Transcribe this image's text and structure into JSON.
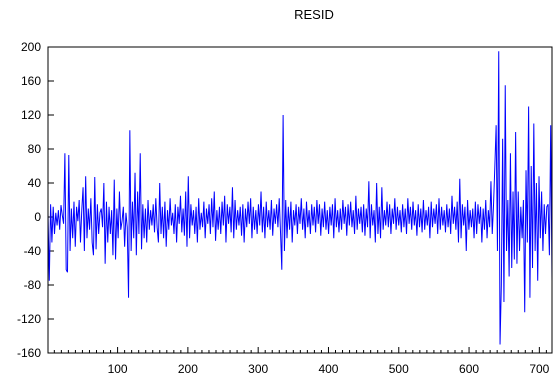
{
  "chart_data": {
    "type": "line",
    "title": "RESID",
    "xlabel": "",
    "ylabel": "",
    "xlim": [
      1,
      718
    ],
    "ylim": [
      -160,
      200
    ],
    "y_ticks": [
      200,
      160,
      120,
      80,
      40,
      0,
      -40,
      -80,
      -120,
      -160
    ],
    "x_ticks": [
      100,
      200,
      300,
      400,
      500,
      600,
      700
    ],
    "grid": false,
    "legend": "none",
    "line_color": "#0000ff",
    "series": [
      {
        "values": [
          4,
          -75,
          15,
          -30,
          12,
          -20,
          5,
          -10,
          8,
          -15,
          14,
          2,
          -8,
          75,
          -62,
          -65,
          73,
          -40,
          10,
          -25,
          18,
          -35,
          12,
          -5,
          20,
          -30,
          8,
          35,
          -40,
          48,
          -25,
          10,
          -15,
          22,
          -30,
          -45,
          47,
          -38,
          15,
          -20,
          5,
          10,
          -12,
          40,
          -55,
          18,
          -30,
          12,
          -20,
          8,
          -45,
          44,
          -50,
          10,
          -25,
          30,
          -15,
          -5,
          12,
          -35,
          5,
          -12,
          -95,
          102,
          -40,
          18,
          -25,
          52,
          -45,
          30,
          -20,
          75,
          -38,
          15,
          -25,
          10,
          -30,
          20,
          -15,
          8,
          -10,
          15,
          -18,
          22,
          -12,
          -30,
          40,
          -20,
          12,
          -25,
          18,
          -35,
          8,
          -15,
          22,
          -10,
          5,
          -20,
          15,
          -30,
          12,
          -8,
          25,
          -18,
          10,
          -22,
          30,
          -35,
          48,
          -25,
          15,
          -10,
          8,
          -20,
          12,
          -30,
          22,
          -15,
          5,
          -12,
          18,
          -25,
          10,
          -8,
          15,
          -20,
          22,
          -12,
          30,
          -28,
          8,
          -15,
          12,
          -20,
          18,
          -10,
          25,
          -30,
          15,
          -8,
          12,
          -18,
          35,
          -25,
          20,
          -15,
          8,
          -10,
          12,
          -22,
          15,
          -30,
          10,
          -12,
          18,
          -8,
          22,
          -25,
          12,
          -15,
          8,
          -20,
          15,
          -10,
          30,
          -18,
          12,
          -25,
          18,
          -12,
          8,
          -15,
          20,
          -22,
          10,
          -8,
          15,
          -12,
          22,
          -18,
          -62,
          120,
          -40,
          20,
          -25,
          12,
          -15,
          18,
          -30,
          8,
          -10,
          15,
          -20,
          12,
          -8,
          22,
          -15,
          10,
          -25,
          18,
          -12,
          8,
          -20,
          15,
          -10,
          12,
          -18,
          20,
          -8,
          15,
          -22,
          10,
          -12,
          18,
          -15,
          8,
          -20,
          12,
          -10,
          15,
          -25,
          22,
          -12,
          8,
          -18,
          10,
          -15,
          20,
          -8,
          12,
          -22,
          15,
          -10,
          18,
          -12,
          8,
          -20,
          25,
          -15,
          10,
          -8,
          12,
          -18,
          15,
          -22,
          10,
          -12,
          42,
          -25,
          15,
          -10,
          8,
          -30,
          40,
          -20,
          12,
          -25,
          35,
          -15,
          8,
          -10,
          18,
          -12,
          15,
          -20,
          10,
          -8,
          22,
          -15,
          12,
          -10,
          8,
          -18,
          15,
          -12,
          10,
          -20,
          22,
          -8,
          12,
          -15,
          18,
          -10,
          8,
          -22,
          15,
          -12,
          10,
          -18,
          20,
          -15,
          8,
          -10,
          12,
          -25,
          18,
          -12,
          10,
          -8,
          15,
          -20,
          22,
          -15,
          12,
          -10,
          8,
          -18,
          15,
          -12,
          10,
          -20,
          25,
          -8,
          12,
          -15,
          18,
          -30,
          45,
          -25,
          15,
          -10,
          12,
          -40,
          20,
          -15,
          8,
          -12,
          10,
          -25,
          18,
          -20,
          15,
          -8,
          12,
          -30,
          10,
          -15,
          20,
          -25,
          8,
          -12,
          42,
          -20,
          15,
          60,
          108,
          -40,
          195,
          -150,
          -80,
          92,
          -100,
          155,
          -40,
          20,
          -70,
          75,
          -60,
          30,
          -50,
          100,
          -55,
          30,
          -40,
          12,
          -25,
          20,
          -112,
          55,
          -30,
          130,
          -95,
          60,
          -60,
          110,
          -40,
          40,
          -75,
          48,
          -25,
          30,
          -40,
          15,
          -20,
          12,
          15,
          -45,
          108,
          -75
        ]
      }
    ]
  }
}
